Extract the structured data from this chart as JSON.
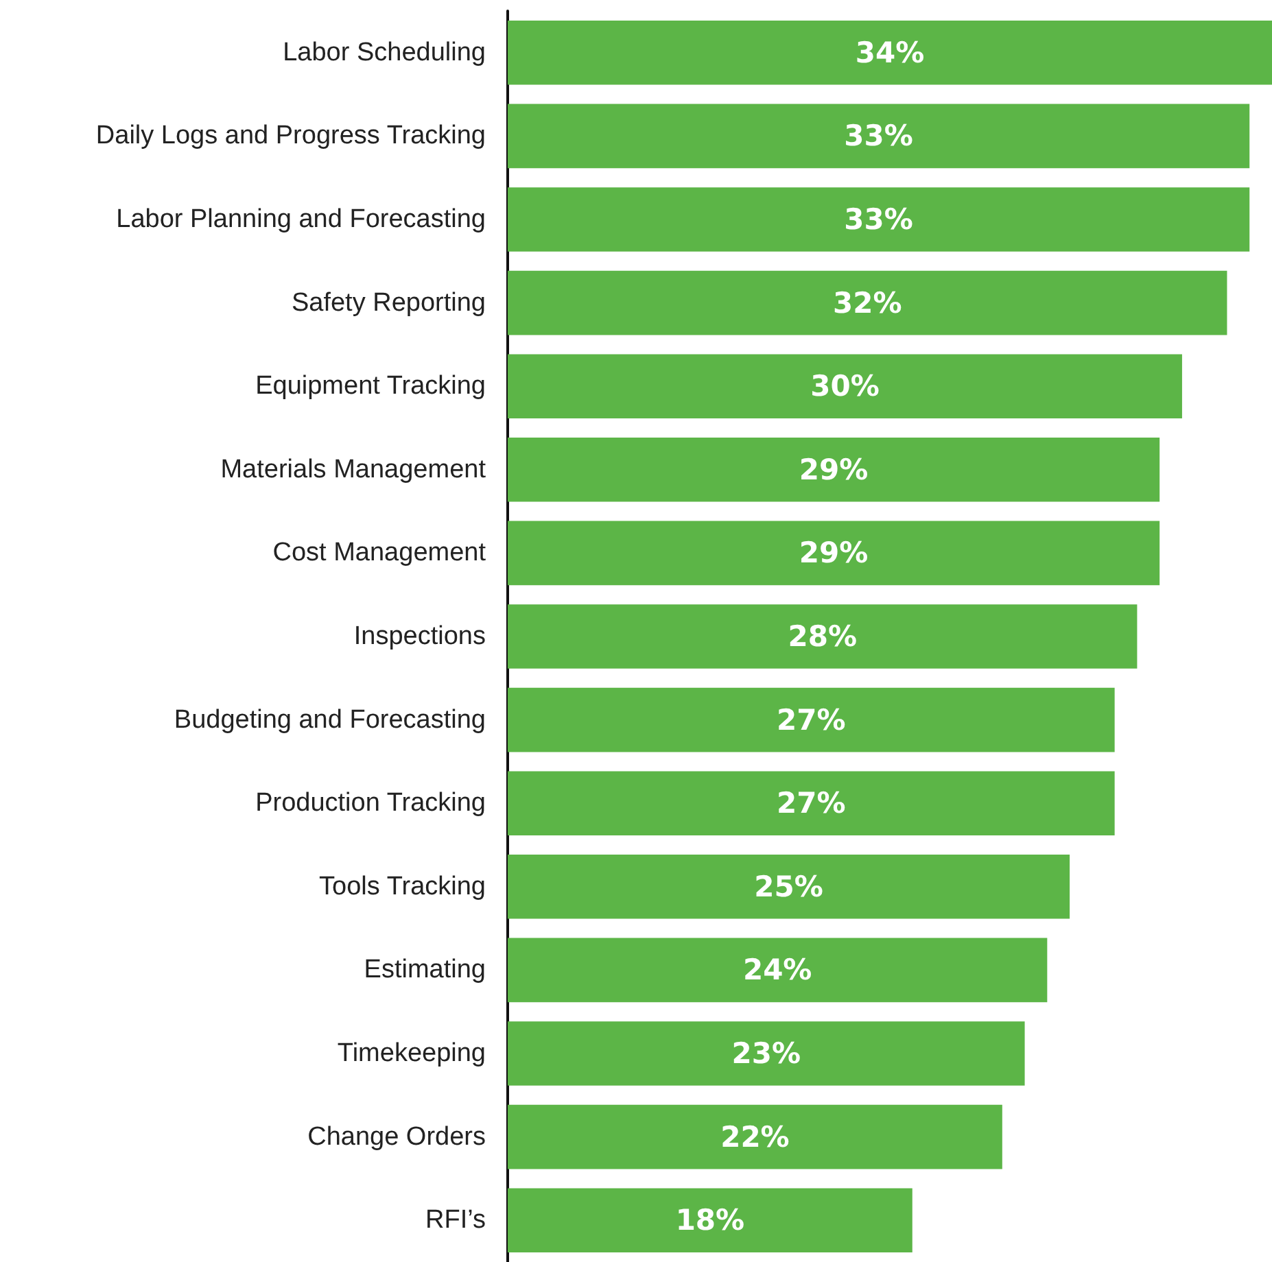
{
  "chart_data": {
    "type": "bar",
    "orientation": "horizontal",
    "categories": [
      "Labor Scheduling",
      "Daily Logs and Progress Tracking",
      "Labor Planning and Forecasting",
      "Safety Reporting",
      "Equipment Tracking",
      "Materials Management",
      "Cost Management",
      "Inspections",
      "Budgeting and Forecasting",
      "Production Tracking",
      "Tools Tracking",
      "Estimating",
      "Timekeeping",
      "Change Orders",
      "RFI’s"
    ],
    "values": [
      34,
      33,
      33,
      32,
      30,
      29,
      29,
      28,
      27,
      27,
      25,
      24,
      23,
      22,
      18
    ],
    "value_labels": [
      "34%",
      "33%",
      "33%",
      "32%",
      "30%",
      "29%",
      "29%",
      "28%",
      "27%",
      "27%",
      "25%",
      "24%",
      "23%",
      "22%",
      "18%"
    ],
    "color": "#5cb547"
  }
}
